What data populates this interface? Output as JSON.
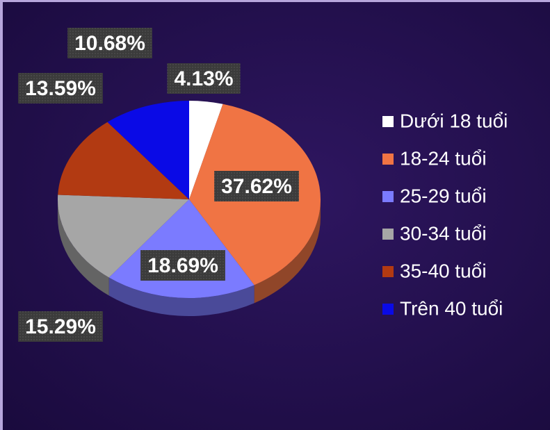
{
  "chart_data": {
    "type": "pie",
    "categories": [
      "Dưới 18 tuổi",
      "18-24 tuổi",
      "25-29 tuổi",
      "30-34 tuổi",
      "35-40 tuổi",
      "Trên 40 tuổi"
    ],
    "values": [
      4.13,
      37.62,
      18.69,
      15.29,
      13.59,
      10.68
    ],
    "value_labels": [
      "4.13%",
      "37.62%",
      "18.69%",
      "15.29%",
      "13.59%",
      "10.68%"
    ],
    "colors": [
      "#ffffff",
      "#f07444",
      "#7b7bff",
      "#a6a6a6",
      "#b23a12",
      "#0a0ae6"
    ],
    "legend": "right"
  }
}
